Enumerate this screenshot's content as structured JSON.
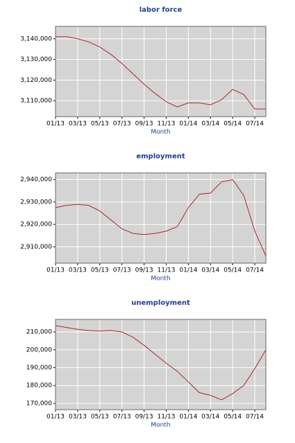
{
  "chart_data": [
    {
      "type": "line",
      "title": "labor force",
      "xlabel": "Month",
      "categories": [
        "01/13",
        null,
        "03/13",
        null,
        "05/13",
        null,
        "07/13",
        null,
        "09/13",
        null,
        "11/13",
        null,
        "01/14",
        null,
        "03/14",
        null,
        "05/14",
        null,
        "07/14",
        null
      ],
      "values": [
        3141000,
        3141000,
        3140000,
        3138500,
        3136000,
        3132500,
        3128000,
        3123000,
        3118000,
        3113500,
        3109500,
        3107000,
        3109000,
        3109000,
        3108000,
        3110500,
        3115500,
        3113000,
        3106000,
        3106000
      ],
      "color": "#a52a2a",
      "ylim": [
        3102300,
        3146000
      ],
      "yticks": [
        {
          "value": 3110000,
          "label": "3,110,000"
        },
        {
          "value": 3120000,
          "label": "3,120,000"
        },
        {
          "value": 3130000,
          "label": "3,130,000"
        },
        {
          "value": 3140000,
          "label": "3,140,000"
        }
      ],
      "grid": true
    },
    {
      "type": "line",
      "title": "employment",
      "xlabel": "Month",
      "categories": [
        "01/13",
        null,
        "03/13",
        null,
        "05/13",
        null,
        "07/13",
        null,
        "09/13",
        null,
        "11/13",
        null,
        "01/14",
        null,
        "03/14",
        null,
        "05/14",
        null,
        "07/14",
        null
      ],
      "values": [
        2927500,
        2928500,
        2929000,
        2928500,
        2926000,
        2922000,
        2918000,
        2916000,
        2915500,
        2916000,
        2917000,
        2919000,
        2927500,
        2933500,
        2934000,
        2939000,
        2940000,
        2933000,
        2917000,
        2906000
      ],
      "color": "#a52a2a",
      "ylim": [
        2902700,
        2943000
      ],
      "yticks": [
        {
          "value": 2910000,
          "label": "2,910,000"
        },
        {
          "value": 2920000,
          "label": "2,920,000"
        },
        {
          "value": 2930000,
          "label": "2,930,000"
        },
        {
          "value": 2940000,
          "label": "2,940,000"
        }
      ],
      "grid": true
    },
    {
      "type": "line",
      "title": "unemployment",
      "xlabel": "Month",
      "categories": [
        "01/13",
        null,
        "03/13",
        null,
        "05/13",
        null,
        "07/13",
        null,
        "09/13",
        null,
        "11/13",
        null,
        "01/14",
        null,
        "03/14",
        null,
        "05/14",
        null,
        "07/14",
        null
      ],
      "values": [
        213500,
        212500,
        211500,
        210800,
        210500,
        210800,
        210000,
        207000,
        202500,
        197500,
        192500,
        188000,
        182000,
        176000,
        174500,
        172000,
        175500,
        180000,
        189500,
        200000
      ],
      "color": "#a52a2a",
      "ylim": [
        166500,
        217000
      ],
      "yticks": [
        {
          "value": 170000,
          "label": "170,000"
        },
        {
          "value": 180000,
          "label": "180,000"
        },
        {
          "value": 190000,
          "label": "190,000"
        },
        {
          "value": 200000,
          "label": "200,000"
        },
        {
          "value": 210000,
          "label": "210,000"
        }
      ],
      "grid": true
    }
  ]
}
